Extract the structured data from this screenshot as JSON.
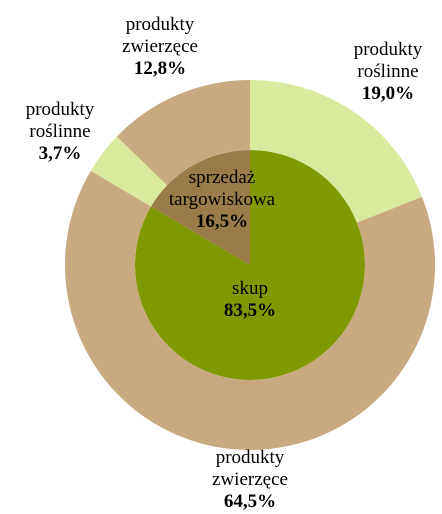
{
  "chart_data": {
    "type": "nested-donut",
    "rings": [
      {
        "categories": [
          "skup",
          "sprzedaż targowiskowa"
        ],
        "values": [
          83.5,
          16.5
        ],
        "value_labels": [
          "83,5%",
          "16,5%"
        ],
        "colors": [
          "#7f9a00",
          "#9b7b4a"
        ]
      },
      {
        "categories": [
          "produkty roślinne",
          "produkty zwierzęce",
          "produkty roślinne",
          "produkty zwierzęce"
        ],
        "values": [
          19.0,
          64.5,
          3.7,
          12.8
        ],
        "value_labels": [
          "19,0%",
          "64,5%",
          "3,7%",
          "12,8%"
        ],
        "colors": [
          "#d9e99e",
          "#c9aa80",
          "#d9e99e",
          "#c9aa80"
        ]
      }
    ]
  }
}
